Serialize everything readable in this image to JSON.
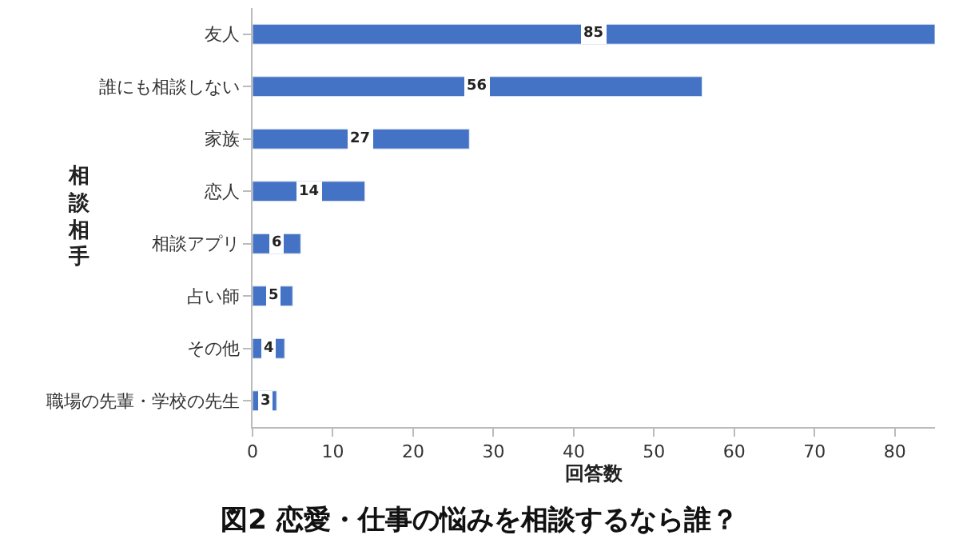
{
  "chart_data": {
    "type": "bar",
    "orientation": "horizontal",
    "title": "図2 恋愛・仕事の悩みを相談するなら誰？",
    "xlabel": "回答数",
    "ylabel": "相談相手",
    "categories": [
      "友人",
      "誰にも相談しない",
      "家族",
      "恋人",
      "相談アプリ",
      "占い師",
      "その他",
      "職場の先輩・学校の先生"
    ],
    "values": [
      85,
      56,
      27,
      14,
      6,
      5,
      4,
      3
    ],
    "color": "#4472c4",
    "xlim": [
      0,
      85
    ],
    "xticks": [
      0,
      10,
      20,
      30,
      40,
      50,
      60,
      70,
      80
    ],
    "data_labels": true
  }
}
